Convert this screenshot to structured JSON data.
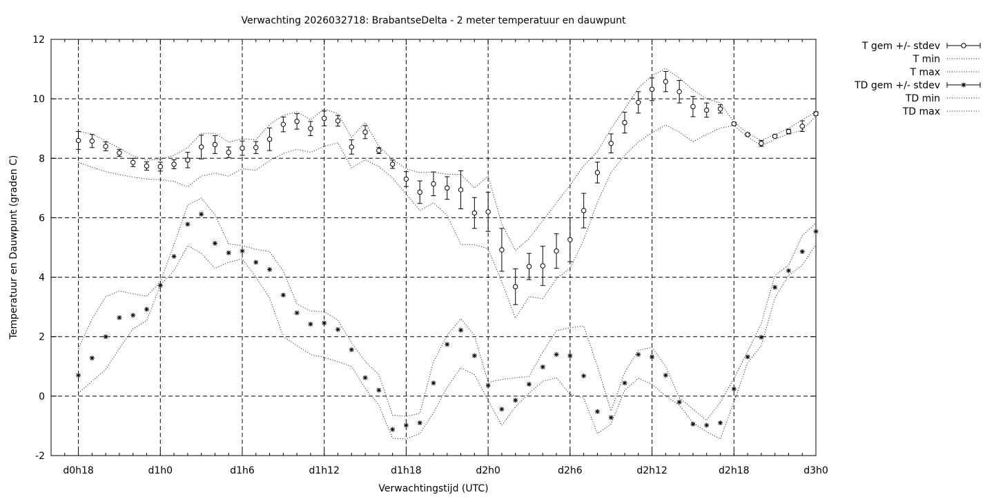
{
  "chart_data": {
    "type": "line",
    "title": "Verwachting 2026032718: BrabantseDelta - 2 meter temperatuur en dauwpunt",
    "xlabel": "Verwachtingstijd (UTC)",
    "ylabel": "Temperatuur en Dauwpunt (graden C)",
    "x_unit": "hours",
    "xlim": [
      16,
      72
    ],
    "ylim": [
      -2,
      12
    ],
    "yticks": [
      -2,
      0,
      2,
      4,
      6,
      8,
      10,
      12
    ],
    "xticks": [
      {
        "x": 18,
        "label": "d0h18"
      },
      {
        "x": 24,
        "label": "d1h0"
      },
      {
        "x": 30,
        "label": "d1h6"
      },
      {
        "x": 36,
        "label": "d1h12"
      },
      {
        "x": 42,
        "label": "d1h18"
      },
      {
        "x": 48,
        "label": "d2h0"
      },
      {
        "x": 54,
        "label": "d2h6"
      },
      {
        "x": 60,
        "label": "d2h12"
      },
      {
        "x": 66,
        "label": "d2h18"
      },
      {
        "x": 72,
        "label": "d3h0"
      }
    ],
    "grid": true,
    "legend_position": "outside-right",
    "x": [
      18,
      19,
      20,
      21,
      22,
      23,
      24,
      25,
      26,
      27,
      28,
      29,
      30,
      31,
      32,
      33,
      34,
      35,
      36,
      37,
      38,
      39,
      40,
      41,
      42,
      43,
      44,
      45,
      46,
      47,
      48,
      49,
      50,
      51,
      52,
      53,
      54,
      55,
      56,
      57,
      58,
      59,
      60,
      61,
      62,
      63,
      64,
      65,
      66,
      67,
      68,
      69,
      70,
      71,
      72
    ],
    "series": [
      {
        "name": "T gem +/- stdev",
        "marker": "circle",
        "values": [
          8.6,
          8.58,
          8.4,
          8.18,
          7.86,
          7.74,
          7.72,
          7.8,
          7.94,
          8.38,
          8.46,
          8.2,
          8.34,
          8.36,
          8.64,
          9.14,
          9.24,
          9.0,
          9.34,
          9.26,
          8.38,
          8.88,
          8.26,
          7.8,
          7.3,
          6.86,
          7.14,
          7.0,
          6.94,
          6.16,
          6.2,
          4.92,
          3.68,
          4.36,
          4.38,
          4.88,
          5.26,
          6.24,
          7.52,
          8.5,
          9.2,
          9.88,
          10.32,
          10.58,
          10.24,
          9.74,
          9.62,
          9.66,
          9.16,
          8.8,
          8.5,
          8.74,
          8.9,
          9.08,
          9.5
        ],
        "stdev": [
          0.3,
          0.22,
          0.15,
          0.12,
          0.14,
          0.14,
          0.15,
          0.15,
          0.26,
          0.4,
          0.3,
          0.18,
          0.24,
          0.2,
          0.38,
          0.25,
          0.26,
          0.24,
          0.25,
          0.18,
          0.24,
          0.22,
          0.1,
          0.14,
          0.25,
          0.38,
          0.4,
          0.38,
          0.64,
          0.52,
          0.66,
          0.72,
          0.6,
          0.44,
          0.66,
          0.58,
          0.74,
          0.58,
          0.35,
          0.32,
          0.35,
          0.36,
          0.38,
          0.34,
          0.38,
          0.34,
          0.24,
          0.14,
          0.05,
          0.05,
          0.1,
          0.05,
          0.08,
          0.18,
          0.06
        ]
      },
      {
        "name": "T min",
        "style": "dotted",
        "values": [
          7.86,
          7.7,
          7.55,
          7.45,
          7.37,
          7.3,
          7.28,
          7.22,
          7.04,
          7.4,
          7.5,
          7.4,
          7.65,
          7.6,
          7.92,
          8.16,
          8.3,
          8.2,
          8.4,
          8.52,
          7.68,
          7.95,
          7.72,
          7.34,
          6.8,
          6.25,
          6.5,
          6.08,
          5.1,
          5.1,
          4.95,
          3.85,
          2.62,
          3.35,
          3.28,
          3.95,
          4.3,
          5.26,
          6.52,
          7.52,
          8.1,
          8.55,
          8.86,
          9.12,
          8.88,
          8.56,
          8.8,
          9.02,
          9.1,
          8.72,
          8.42,
          8.64,
          8.82,
          8.94,
          9.42
        ]
      },
      {
        "name": "T max",
        "style": "dotted",
        "values": [
          8.9,
          8.82,
          8.58,
          8.34,
          8.08,
          7.94,
          7.96,
          8.1,
          8.36,
          8.84,
          8.84,
          8.54,
          8.66,
          8.62,
          9.14,
          9.44,
          9.56,
          9.3,
          9.66,
          9.5,
          8.7,
          9.2,
          8.4,
          7.96,
          7.64,
          7.52,
          7.54,
          7.46,
          7.46,
          7.0,
          7.4,
          5.8,
          4.9,
          5.3,
          5.9,
          6.5,
          7.1,
          7.75,
          8.22,
          9.0,
          9.66,
          10.36,
          10.78,
          11.02,
          10.7,
          10.3,
          10.0,
          9.86,
          9.22,
          8.84,
          8.6,
          8.8,
          9.0,
          9.3,
          9.56
        ]
      },
      {
        "name": "TD gem +/- stdev",
        "marker": "asterisk",
        "values": [
          0.7,
          1.28,
          2.0,
          2.64,
          2.72,
          2.92,
          3.72,
          4.7,
          5.78,
          6.12,
          5.14,
          4.82,
          4.88,
          4.5,
          4.26,
          3.4,
          2.8,
          2.42,
          2.46,
          2.24,
          1.56,
          0.62,
          0.2,
          -1.12,
          -0.98,
          -0.9,
          0.44,
          1.74,
          2.22,
          1.36,
          0.36,
          -0.44,
          -0.14,
          0.4,
          0.98,
          1.4,
          1.36,
          0.68,
          -0.52,
          -0.72,
          0.44,
          1.4,
          1.32,
          0.7,
          -0.2,
          -0.94,
          -0.98,
          -0.9,
          0.24,
          1.32,
          1.98,
          3.66,
          4.22,
          4.86,
          5.54
        ]
      },
      {
        "name": "TD min",
        "style": "dotted",
        "values": [
          0.1,
          0.5,
          0.9,
          1.6,
          2.26,
          2.54,
          3.74,
          4.22,
          5.06,
          4.8,
          4.3,
          4.5,
          4.62,
          4.0,
          3.3,
          2.0,
          1.7,
          1.4,
          1.3,
          1.16,
          1.0,
          0.26,
          -0.3,
          -1.42,
          -1.44,
          -1.26,
          -0.56,
          0.3,
          0.96,
          0.72,
          -0.14,
          -0.98,
          -0.36,
          0.1,
          0.5,
          0.62,
          0.06,
          -0.06,
          -1.26,
          -0.94,
          0.2,
          0.6,
          0.4,
          0.0,
          -0.3,
          -0.9,
          -1.2,
          -1.44,
          -0.2,
          1.12,
          1.7,
          3.3,
          4.06,
          4.4,
          5.1
        ]
      },
      {
        "name": "TD max",
        "style": "dotted",
        "values": [
          1.6,
          2.6,
          3.34,
          3.54,
          3.44,
          3.36,
          3.84,
          5.1,
          6.42,
          6.66,
          6.1,
          5.12,
          5.06,
          4.94,
          4.86,
          4.2,
          3.1,
          2.86,
          2.84,
          2.56,
          1.8,
          1.16,
          0.72,
          -0.64,
          -0.68,
          -0.58,
          1.16,
          2.04,
          2.6,
          2.04,
          0.46,
          0.56,
          0.62,
          0.66,
          1.48,
          2.2,
          2.3,
          2.36,
          1.0,
          -0.5,
          0.8,
          1.54,
          1.64,
          1.0,
          -0.06,
          -0.44,
          -0.82,
          -0.2,
          0.6,
          1.5,
          2.44,
          4.06,
          4.4,
          5.4,
          5.82
        ]
      }
    ]
  }
}
